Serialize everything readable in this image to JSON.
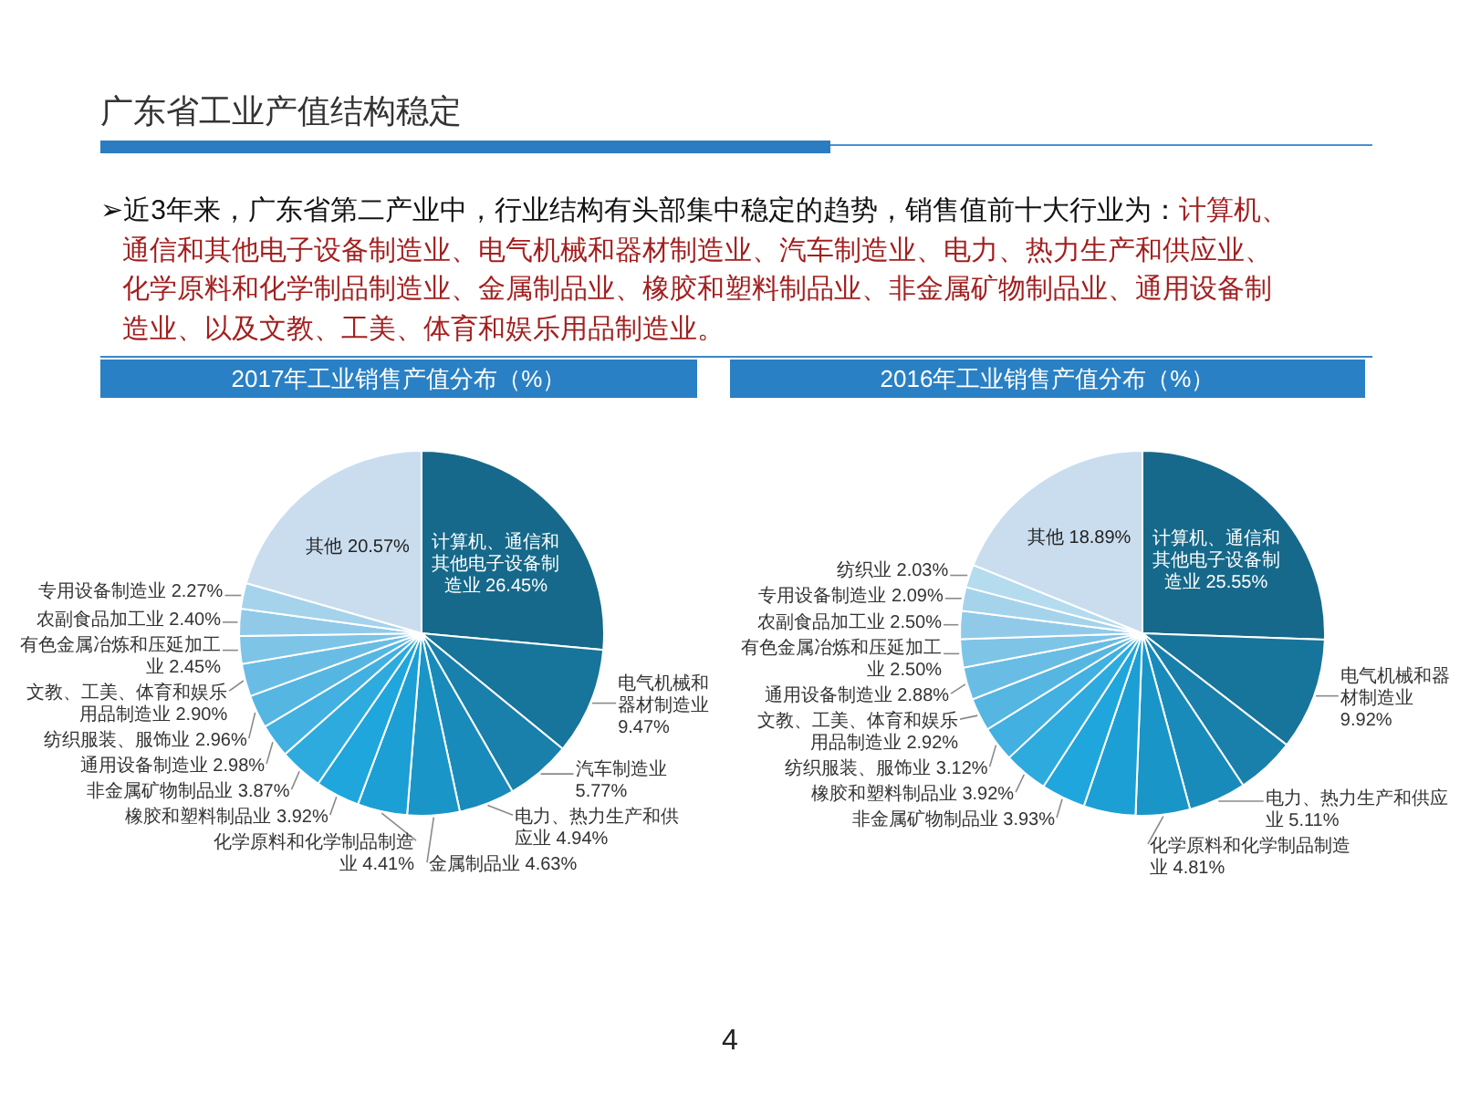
{
  "chart_data": [
    {
      "type": "other",
      "title": "广东省工业产值结构稳定",
      "annotations": [
        "➢近3年来，广东省第二产业中，行业结构有头部集中稳定的趋势，销售值前十大行业为：",
        "计算机、",
        "通信和其他电子设备制造业、电气机械和器材制造业、汽车制造业、电力、热力生产和供应业、化学原料和化学制品制造业、金属制品业、橡胶和塑料制品业、非金属矿物制品业、通用设备制造业、以及文教、工美、体育和娱乐用品制造业。",
        "4"
      ]
    },
    {
      "type": "pie",
      "title": "2017年工业销售产值分布（%）",
      "categories": [
        "计算机、通信和其他电子设备制造业",
        "电气机械和器材制造业",
        "汽车制造业",
        "电力、热力生产和供应业",
        "金属制品业",
        "化学原料和化学制品制造业",
        "橡胶和塑料制品业",
        "非金属矿物制品业",
        "通用设备制造业",
        "纺织服装、服饰业",
        "文教、工美、体育和娱乐用品制造业",
        "有色金属冶炼和压延加工业",
        "农副食品加工业",
        "专用设备制造业",
        "其他"
      ],
      "values": [
        26.45,
        9.47,
        5.77,
        4.94,
        4.63,
        4.41,
        3.92,
        3.87,
        2.98,
        2.96,
        2.9,
        2.45,
        2.4,
        2.27,
        20.57
      ],
      "value_labels": [
        "26.45%",
        "9.47%",
        "5.77%",
        "4.94%",
        "4.63%",
        "4.41%",
        "3.92%",
        "3.87%",
        "2.98%",
        "2.96%",
        "2.90%",
        "2.45%",
        "2.40%",
        "2.27%",
        "20.57%"
      ],
      "colors": [
        "#16698a",
        "#17749b",
        "#1880ab",
        "#198bbb",
        "#1a95c8",
        "#1c9fd5",
        "#1fa6dc",
        "#2eabde",
        "#42b0e0",
        "#55b6e2",
        "#69bde4",
        "#7dc4e6",
        "#91cae8",
        "#a5d3eb",
        "#c9ddee"
      ]
    },
    {
      "type": "pie",
      "title": "2016年工业销售产值分布（%）",
      "categories": [
        "计算机、通信和其他电子设备制造业",
        "电气机械和器材制造业",
        null,
        "电力、热力生产和供应业",
        "化学原料和化学制品制造业",
        null,
        "非金属矿物制品业",
        "橡胶和塑料制品业",
        "纺织服装、服饰业",
        "文教、工美、体育和娱乐用品制造业",
        "通用设备制造业",
        "有色金属冶炼和压延加工业",
        "农副食品加工业",
        "专用设备制造业",
        "纺织业",
        "其他"
      ],
      "values": [
        25.55,
        9.92,
        5.2,
        5.11,
        4.81,
        4.6,
        3.93,
        3.92,
        3.12,
        2.92,
        2.88,
        2.5,
        2.5,
        2.09,
        2.03,
        18.89
      ],
      "value_labels": [
        "25.55%",
        "9.92%",
        null,
        "5.11%",
        "4.81%",
        null,
        "3.93%",
        "3.92%",
        "3.12%",
        "2.92%",
        "2.88%",
        "2.50%",
        "2.50%",
        "2.09%",
        "2.03%",
        "18.89%"
      ],
      "colors": [
        "#16698a",
        "#17749b",
        "#1880ab",
        "#198bbb",
        "#1a95c8",
        "#1c9fd5",
        "#1fa6dc",
        "#2eabde",
        "#42b0e0",
        "#55b6e2",
        "#69bde4",
        "#7dc4e6",
        "#91cae8",
        "#a5d3eb",
        "#b5dbef",
        "#c9ddee"
      ]
    }
  ]
}
